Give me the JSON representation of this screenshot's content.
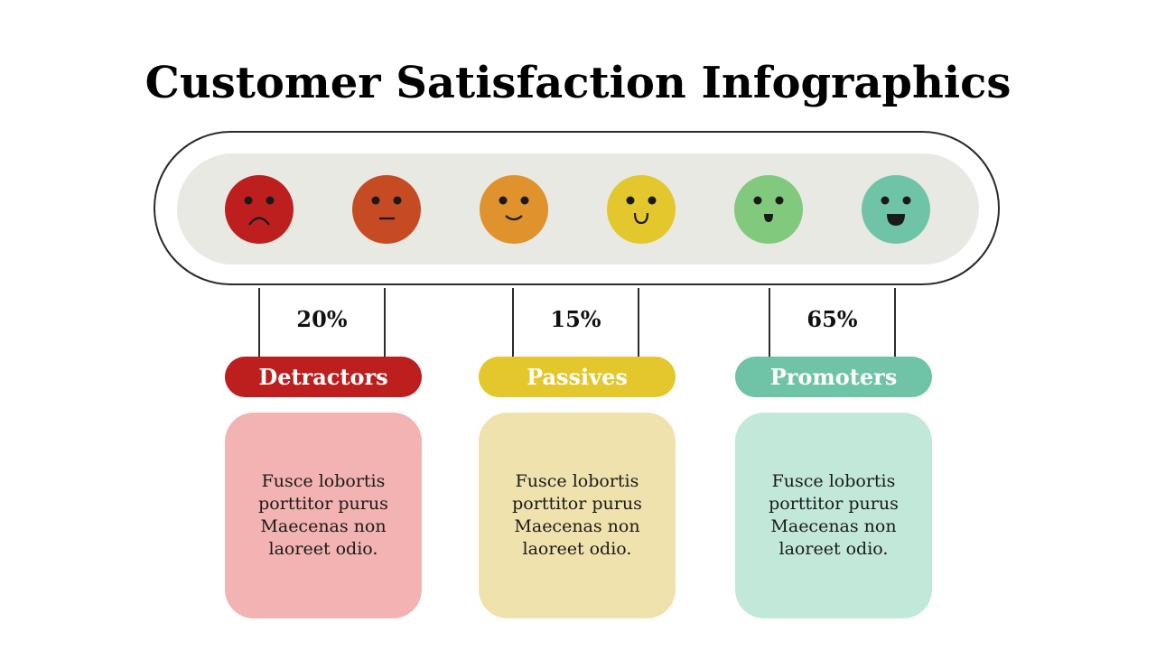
{
  "title": "Customer Satisfaction Infographics",
  "colors": {
    "outline": "#2b2b2b",
    "track": "#e9e9e4",
    "detractors": "#bd1f1f",
    "passives": "#e3c72c",
    "promoters": "#6fc3a6"
  },
  "faces": [
    {
      "name": "very-sad-face-icon",
      "color": "#bd1f1f",
      "mouth": "frown"
    },
    {
      "name": "sad-face-icon",
      "color": "#c64b22",
      "mouth": "flat"
    },
    {
      "name": "neutral-smile-face-icon",
      "color": "#e0922c",
      "mouth": "smile"
    },
    {
      "name": "smile-face-icon",
      "color": "#e3c72c",
      "mouth": "smile"
    },
    {
      "name": "happy-face-icon",
      "color": "#80c97d",
      "mouth": "open-small"
    },
    {
      "name": "very-happy-face-icon",
      "color": "#6fc3a6",
      "mouth": "open-big"
    }
  ],
  "groups": [
    {
      "percent": "20%",
      "label": "Detractors",
      "label_color": "#bd1f1f",
      "card_color": "#f2b3b2",
      "text": "Fusce lobortis porttitor purus Maecenas non laoreet odio."
    },
    {
      "percent": "15%",
      "label": "Passives",
      "label_color": "#e3c72c",
      "card_color": "#efe2ad",
      "text": "Fusce lobortis porttitor purus Maecenas non laoreet odio."
    },
    {
      "percent": "65%",
      "label": "Promoters",
      "label_color": "#6fc3a6",
      "card_color": "#c2e8da",
      "text": "Fusce lobortis porttitor purus Maecenas non laoreet odio."
    }
  ]
}
